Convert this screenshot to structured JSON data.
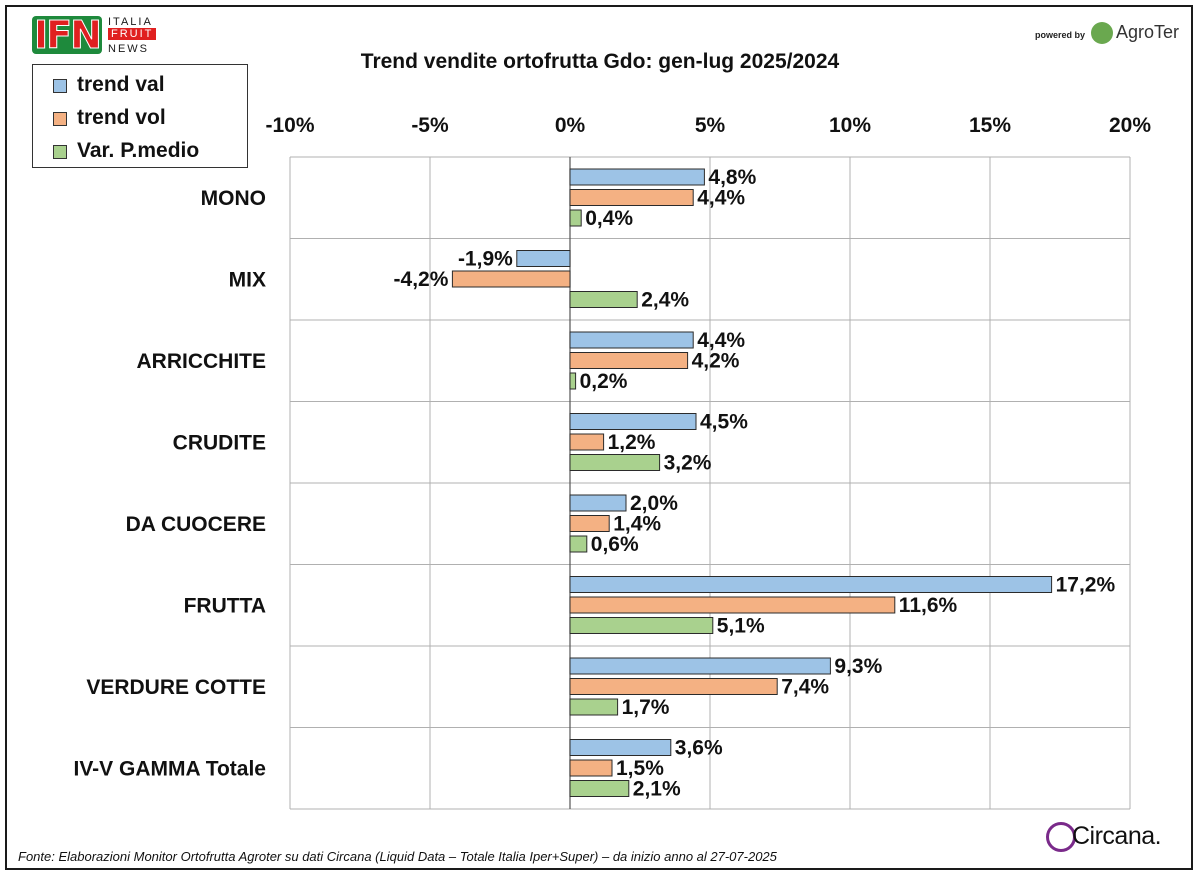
{
  "branding": {
    "ifn_letters": "IFN",
    "ifn_line1": "ITALIA",
    "ifn_line2": "FRUIT",
    "ifn_line3": "NEWS",
    "powered_by": "powered by",
    "agroter": "AgroTer",
    "circana": "Circana."
  },
  "colors": {
    "trend_val": "#9dc3e6",
    "trend_vol": "#f4b183",
    "var_pmedio": "#a9d18e",
    "bar_stroke": "#2b2b2b",
    "grid": "#b0b0b0"
  },
  "source": "Fonte: Elaborazioni Monitor Ortofrutta Agroter su dati Circana (Liquid Data – Totale Italia Iper+Super) –  da inizio anno al 27-07-2025",
  "chart_data": {
    "type": "bar",
    "orientation": "horizontal",
    "title": "Trend vendite ortofrutta Gdo: gen-lug 2025/2024",
    "xlabel": "",
    "ylabel": "",
    "xlim": [
      -10,
      20
    ],
    "xticks": [
      -10,
      -5,
      0,
      5,
      10,
      15,
      20
    ],
    "xtick_labels": [
      "-10%",
      "-5%",
      "0%",
      "5%",
      "10%",
      "15%",
      "20%"
    ],
    "grid": true,
    "legend_position": "top-left",
    "categories": [
      "MONO",
      "MIX",
      "ARRICCHITE",
      "CRUDITE",
      "DA CUOCERE",
      "FRUTTA",
      "VERDURE COTTE",
      "IV-V GAMMA Totale"
    ],
    "series": [
      {
        "name": "trend val",
        "values": [
          4.8,
          -1.9,
          4.4,
          4.5,
          2.0,
          17.2,
          9.3,
          3.6
        ],
        "labels": [
          "4,8%",
          "-1,9%",
          "4,4%",
          "4,5%",
          "2,0%",
          "17,2%",
          "9,3%",
          "3,6%"
        ]
      },
      {
        "name": "trend vol",
        "values": [
          4.4,
          -4.2,
          4.2,
          1.2,
          1.4,
          11.6,
          7.4,
          1.5
        ],
        "labels": [
          "4,4%",
          "-4,2%",
          "4,2%",
          "1,2%",
          "1,4%",
          "11,6%",
          "7,4%",
          "1,5%"
        ]
      },
      {
        "name": "Var. P.medio",
        "values": [
          0.4,
          2.4,
          0.2,
          3.2,
          0.6,
          5.1,
          1.7,
          2.1
        ],
        "labels": [
          "0,4%",
          "2,4%",
          "0,2%",
          "3,2%",
          "0,6%",
          "5,1%",
          "1,7%",
          "2,1%"
        ]
      }
    ]
  }
}
